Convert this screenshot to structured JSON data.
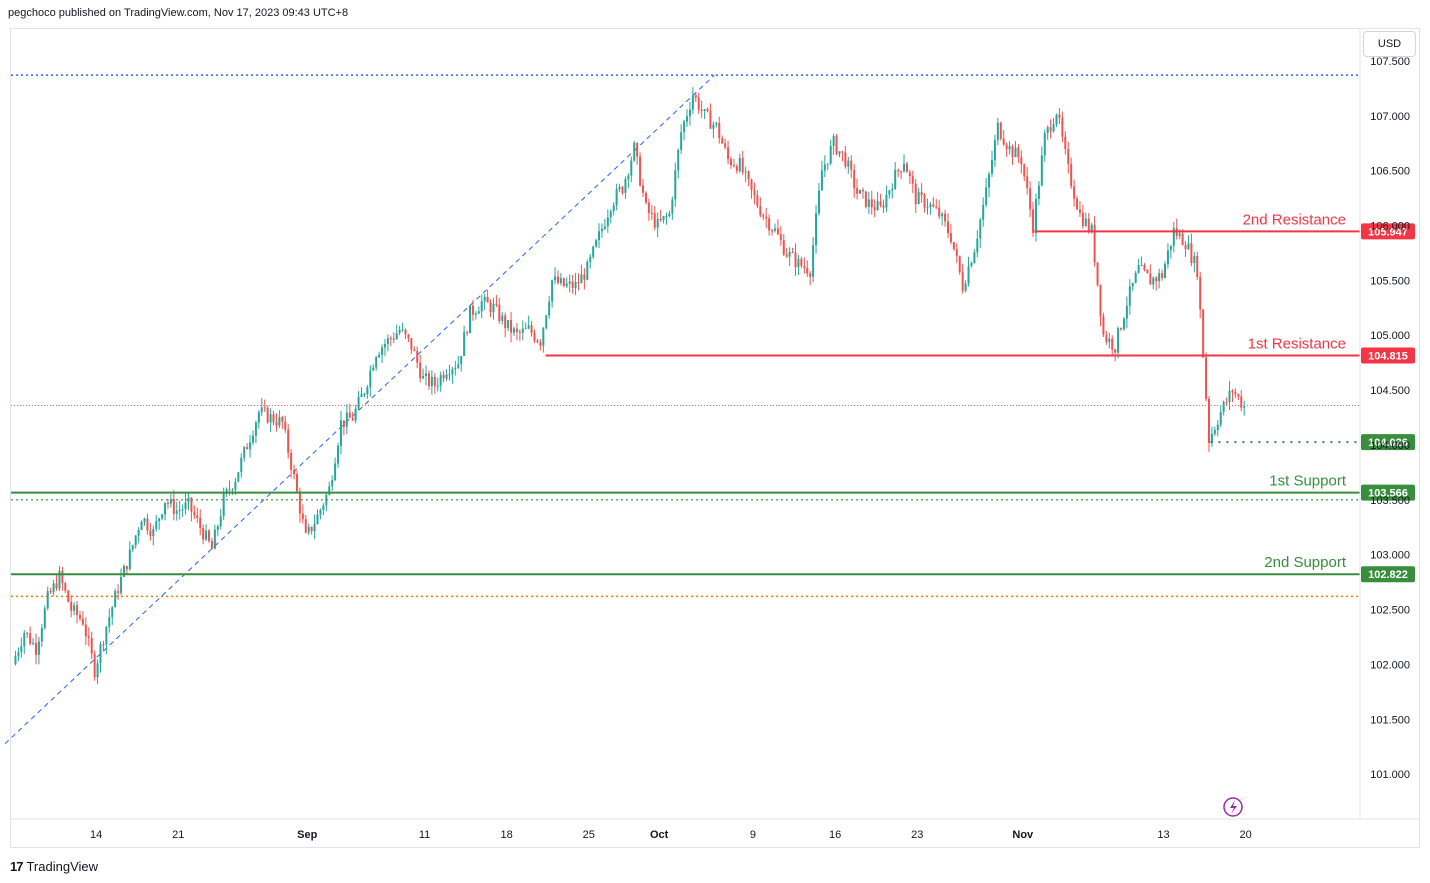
{
  "header": {
    "published": "pegchoco published on TradingView.com, Nov 17, 2023 09:43 UTC+8"
  },
  "currency": "USD",
  "footer": {
    "brand": "TradingView",
    "logo_mark": "17"
  },
  "colors": {
    "bull": "#26a69a",
    "bear": "#ef5350",
    "resistance": "#f23645",
    "support": "#388e3c",
    "trend": "#2962ff",
    "orange": "#f57c00",
    "dotblue": "#2962ff"
  },
  "chart_data": {
    "type": "candlestick",
    "symbol_note": "",
    "y_axis": {
      "ticks": [
        "107.500",
        "107.000",
        "106.500",
        "106.000",
        "105.500",
        "105.000",
        "104.500",
        "104.000",
        "103.500",
        "103.000",
        "102.500",
        "102.000",
        "101.500",
        "101.000"
      ],
      "range": [
        100.6,
        107.8
      ]
    },
    "x_axis": {
      "ticks": [
        "14",
        "21",
        "Sep",
        "11",
        "18",
        "25",
        "Oct",
        "9",
        "16",
        "23",
        "Nov",
        "13",
        "20"
      ]
    },
    "levels": [
      {
        "name": "2nd Resistance",
        "value": 105.947,
        "label": "105.947",
        "kind": "resistance"
      },
      {
        "name": "1st Resistance",
        "value": 104.815,
        "label": "104.815",
        "kind": "resistance"
      },
      {
        "name": "",
        "value": 104.026,
        "label": "104.026",
        "kind": "current"
      },
      {
        "name": "1st Support",
        "value": 103.566,
        "label": "103.566",
        "kind": "support"
      },
      {
        "name": "2nd Support",
        "value": 102.822,
        "label": "102.822",
        "kind": "support"
      }
    ],
    "reference_lines": {
      "high_dotted": 107.37,
      "orange_dotted": 102.62,
      "red_dotted": 104.36,
      "green_dotted": 103.5
    },
    "trend_line": {
      "from": {
        "date": "Aug 7",
        "value": 101.45
      },
      "to": {
        "date": "Oct 4",
        "value": 107.37
      }
    },
    "price_path": [
      [
        "Aug 7",
        102.0
      ],
      [
        "Aug 8",
        102.3
      ],
      [
        "Aug 9",
        102.15
      ],
      [
        "Aug 10",
        102.6
      ],
      [
        "Aug 11",
        102.8
      ],
      [
        "Aug 12",
        102.5
      ],
      [
        "Aug 13",
        102.4
      ],
      [
        "Aug 14",
        101.95
      ],
      [
        "Aug 15",
        102.35
      ],
      [
        "Aug 16",
        102.7
      ],
      [
        "Aug 17",
        103.0
      ],
      [
        "Aug 18",
        103.35
      ],
      [
        "Aug 19",
        103.2
      ],
      [
        "Aug 20",
        103.5
      ],
      [
        "Aug 21",
        103.4
      ],
      [
        "Aug 22",
        103.45
      ],
      [
        "Aug 23",
        103.25
      ],
      [
        "Aug 24",
        103.05
      ],
      [
        "Aug 25",
        103.5
      ],
      [
        "Aug 26",
        103.7
      ],
      [
        "Aug 27",
        104.0
      ],
      [
        "Aug 28",
        104.3
      ],
      [
        "Aug 29",
        104.25
      ],
      [
        "Aug 30",
        104.2
      ],
      [
        "Aug 31",
        103.7
      ],
      [
        "Sep 1",
        103.15
      ],
      [
        "Sep 2",
        103.35
      ],
      [
        "Sep 3",
        103.6
      ],
      [
        "Sep 4",
        104.2
      ],
      [
        "Sep 5",
        104.25
      ],
      [
        "Sep 6",
        104.5
      ],
      [
        "Sep 7",
        104.85
      ],
      [
        "Sep 8",
        104.95
      ],
      [
        "Sep 9",
        105.05
      ],
      [
        "Sep 10",
        104.9
      ],
      [
        "Sep 11",
        104.6
      ],
      [
        "Sep 12",
        104.55
      ],
      [
        "Sep 13",
        104.7
      ],
      [
        "Sep 14",
        104.75
      ],
      [
        "Sep 15",
        105.2
      ],
      [
        "Sep 16",
        105.3
      ],
      [
        "Sep 17",
        105.25
      ],
      [
        "Sep 18",
        105.1
      ],
      [
        "Sep 19",
        105.0
      ],
      [
        "Sep 20",
        105.05
      ],
      [
        "Sep 21",
        104.95
      ],
      [
        "Sep 22",
        105.5
      ],
      [
        "Sep 23",
        105.45
      ],
      [
        "Sep 24",
        105.45
      ],
      [
        "Sep 25",
        105.6
      ],
      [
        "Sep 26",
        105.9
      ],
      [
        "Sep 27",
        106.2
      ],
      [
        "Sep 28",
        106.35
      ],
      [
        "Sep 29",
        106.7
      ],
      [
        "Sep 30",
        106.15
      ],
      [
        "Oct 1",
        106.0
      ],
      [
        "Oct 2",
        106.1
      ],
      [
        "Oct 3",
        106.85
      ],
      [
        "Oct 4",
        107.2
      ],
      [
        "Oct 5",
        107.0
      ],
      [
        "Oct 6",
        106.9
      ],
      [
        "Oct 7",
        106.6
      ],
      [
        "Oct 8",
        106.55
      ],
      [
        "Oct 9",
        106.3
      ],
      [
        "Oct 10",
        106.1
      ],
      [
        "Oct 11",
        105.95
      ],
      [
        "Oct 12",
        105.75
      ],
      [
        "Oct 13",
        105.65
      ],
      [
        "Oct 14",
        105.6
      ],
      [
        "Oct 15",
        106.5
      ],
      [
        "Oct 16",
        106.75
      ],
      [
        "Oct 17",
        106.6
      ],
      [
        "Oct 18",
        106.3
      ],
      [
        "Oct 19",
        106.2
      ],
      [
        "Oct 20",
        106.15
      ],
      [
        "Oct 21",
        106.4
      ],
      [
        "Oct 22",
        106.6
      ],
      [
        "Oct 23",
        106.25
      ],
      [
        "Oct 24",
        106.2
      ],
      [
        "Oct 25",
        106.1
      ],
      [
        "Oct 26",
        105.9
      ],
      [
        "Oct 27",
        105.45
      ],
      [
        "Oct 28",
        105.8
      ],
      [
        "Oct 29",
        106.3
      ],
      [
        "Oct 30",
        106.9
      ],
      [
        "Oct 31",
        106.7
      ],
      [
        "Nov 1",
        106.6
      ],
      [
        "Nov 2",
        106.0
      ],
      [
        "Nov 3",
        106.8
      ],
      [
        "Nov 4",
        107.05
      ],
      [
        "Nov 5",
        106.5
      ],
      [
        "Nov 6",
        106.1
      ],
      [
        "Nov 7",
        105.95
      ],
      [
        "Nov 8",
        105.0
      ],
      [
        "Nov 9",
        104.9
      ],
      [
        "Nov 10",
        105.3
      ],
      [
        "Nov 11",
        105.6
      ],
      [
        "Nov 12",
        105.5
      ],
      [
        "Nov 13",
        105.55
      ],
      [
        "Nov 14",
        105.95
      ],
      [
        "Nov 15",
        105.85
      ],
      [
        "Nov 16",
        105.6
      ],
      [
        "Nov 17",
        104.05
      ],
      [
        "Nov 18",
        104.3
      ],
      [
        "Nov 19",
        104.5
      ],
      [
        "Nov 20",
        104.35
      ]
    ]
  }
}
